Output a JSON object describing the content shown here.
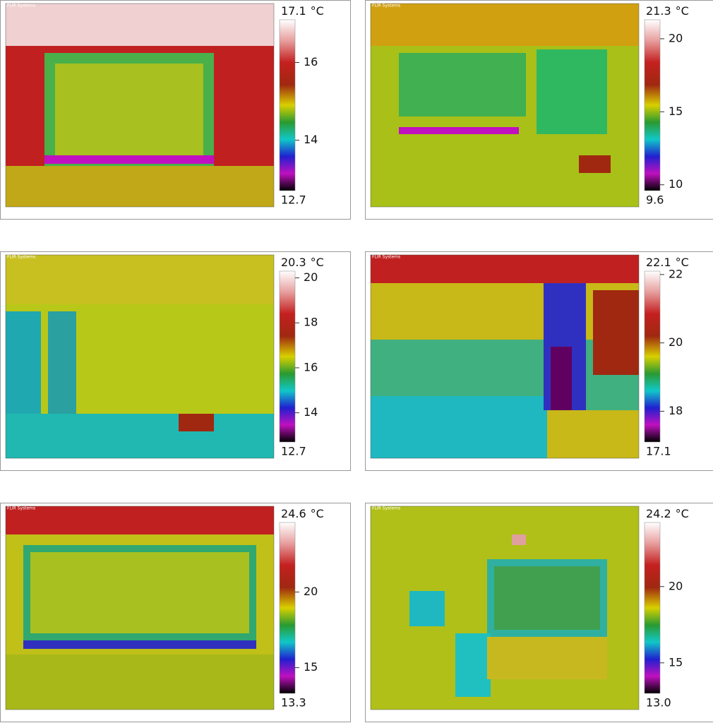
{
  "unit": "°C",
  "panels": [
    {
      "brand": "FLIR Systems",
      "max": 17.1,
      "min": 12.7,
      "ticks": [
        14,
        16
      ]
    },
    {
      "brand": "FLIR Systems",
      "max": 21.3,
      "min": 9.6,
      "ticks": [
        10,
        15,
        20
      ]
    },
    {
      "brand": "FLIR Systems",
      "max": 20.3,
      "min": 12.7,
      "ticks": [
        14,
        16,
        18,
        20
      ]
    },
    {
      "brand": "FLIR Systems",
      "max": 22.1,
      "min": 17.1,
      "ticks": [
        18,
        20,
        22
      ]
    },
    {
      "brand": "FLIR Systems",
      "max": 24.6,
      "min": 13.3,
      "ticks": [
        15,
        20
      ]
    },
    {
      "brand": "FLIR Systems",
      "max": 24.2,
      "min": {
        "value": 13,
        "label": "13.0"
      },
      "ticks": [
        15,
        20
      ]
    }
  ]
}
